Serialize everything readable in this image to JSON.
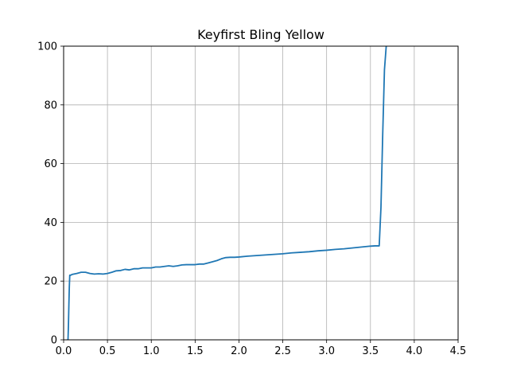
{
  "chart_data": {
    "type": "line",
    "title": "Keyfirst Bling Yellow",
    "xlabel": "",
    "ylabel": "",
    "xlim": [
      0,
      4.5
    ],
    "ylim": [
      0,
      100
    ],
    "x_ticks": [
      "0.0",
      "0.5",
      "1.0",
      "1.5",
      "2.0",
      "2.5",
      "3.0",
      "3.5",
      "4.0",
      "4.5"
    ],
    "y_ticks": [
      "0",
      "20",
      "40",
      "60",
      "80",
      "100"
    ],
    "grid": true,
    "legend": "none",
    "series": [
      {
        "color": "#1f77b4",
        "x": [
          0.04,
          0.05,
          0.055,
          0.06,
          0.065,
          0.07,
          0.08,
          0.1,
          0.15,
          0.2,
          0.25,
          0.3,
          0.35,
          0.4,
          0.45,
          0.5,
          0.55,
          0.6,
          0.65,
          0.7,
          0.75,
          0.8,
          0.85,
          0.9,
          0.95,
          1.0,
          1.05,
          1.1,
          1.15,
          1.2,
          1.25,
          1.3,
          1.35,
          1.4,
          1.45,
          1.5,
          1.55,
          1.6,
          1.65,
          1.7,
          1.75,
          1.8,
          1.85,
          1.9,
          1.95,
          2.0,
          2.1,
          2.2,
          2.3,
          2.4,
          2.5,
          2.6,
          2.7,
          2.8,
          2.9,
          3.0,
          3.1,
          3.2,
          3.3,
          3.4,
          3.5,
          3.55,
          3.6,
          3.62,
          3.64,
          3.66,
          3.68
        ],
        "y": [
          0,
          0,
          5,
          12,
          18,
          22,
          22,
          22.3,
          22.6,
          23.0,
          23.0,
          22.6,
          22.4,
          22.5,
          22.4,
          22.6,
          23.0,
          23.5,
          23.6,
          24.0,
          23.8,
          24.2,
          24.2,
          24.5,
          24.5,
          24.5,
          24.8,
          24.8,
          25.0,
          25.2,
          25.0,
          25.2,
          25.5,
          25.6,
          25.6,
          25.6,
          25.8,
          25.8,
          26.2,
          26.6,
          27.0,
          27.6,
          28.0,
          28.1,
          28.1,
          28.2,
          28.5,
          28.7,
          28.9,
          29.1,
          29.3,
          29.6,
          29.8,
          30.0,
          30.3,
          30.5,
          30.8,
          31.0,
          31.3,
          31.6,
          31.9,
          32.0,
          32.0,
          45,
          70,
          92,
          100
        ]
      }
    ]
  }
}
